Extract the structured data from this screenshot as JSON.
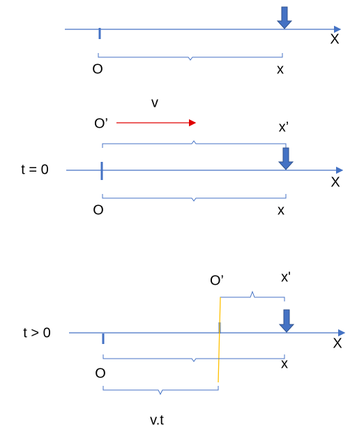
{
  "panel1": {
    "axis_label": "X",
    "origin_label": "O",
    "point_label": "x"
  },
  "panel2": {
    "velocity_label": "v",
    "moving_origin_label": "O’",
    "moving_point_label": "x’",
    "time_label": "t = 0",
    "axis_label": "X",
    "origin_label": "O",
    "point_label": "x"
  },
  "panel3": {
    "moving_origin_label": "O’",
    "moving_point_label": "x'",
    "time_label": "t > 0",
    "axis_label": "X",
    "origin_label": "O",
    "point_label": "x",
    "displacement_label": "v.t"
  }
}
